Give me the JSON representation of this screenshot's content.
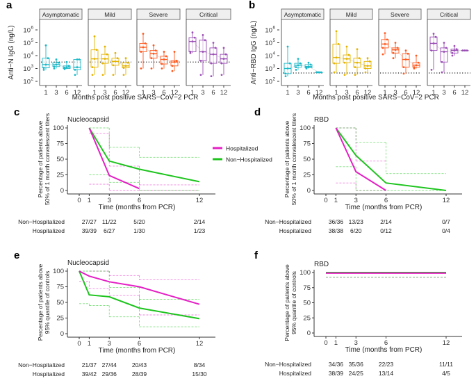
{
  "chart_data": [
    {
      "panel": "a",
      "type": "box",
      "ylabel": "Anti−N IgG (ng/L)",
      "xlabel": "Months post positive SARS−CoV−2 PCR",
      "y_scale": "log10",
      "ylim_log10": [
        2,
        6.5
      ],
      "yticks": [
        "10^2",
        "10^3",
        "10^4",
        "10^5",
        "10^6"
      ],
      "xticks": [
        "1",
        "3",
        "6",
        "12"
      ],
      "threshold_log10": 3.5,
      "facets": [
        {
          "name": "Asymptomatic",
          "color": "#1cb8c8",
          "boxes": [
            [
              2.9,
              3.05,
              3.3,
              3.8,
              4.8
            ],
            [
              3.0,
              3.15,
              3.3,
              3.45,
              3.7
            ],
            [
              2.95,
              3.0,
              3.1,
              3.2,
              3.5
            ],
            [
              2.5,
              2.9,
              3.1,
              3.7,
              3.7
            ]
          ]
        },
        {
          "name": "Mild",
          "color": "#e4b400",
          "boxes": [
            [
              2.5,
              3.1,
              3.75,
              4.45,
              5.5
            ],
            [
              2.5,
              3.4,
              3.75,
              4.1,
              4.7
            ],
            [
              2.5,
              3.25,
              3.55,
              3.8,
              4.2
            ],
            [
              2.5,
              3.05,
              3.2,
              3.45,
              3.8
            ]
          ]
        },
        {
          "name": "Severe",
          "color": "#ff5a1f",
          "boxes": [
            [
              3.0,
              4.3,
              4.65,
              4.95,
              5.7
            ],
            [
              3.0,
              3.8,
              4.15,
              4.4,
              4.8
            ],
            [
              3.0,
              3.35,
              3.7,
              3.95,
              4.3
            ],
            [
              2.8,
              3.2,
              3.5,
              3.6,
              4.3
            ]
          ]
        },
        {
          "name": "Critical",
          "color": "#9b4fb5",
          "boxes": [
            [
              4.2,
              4.3,
              5.1,
              5.4,
              5.8
            ],
            [
              2.5,
              3.6,
              4.3,
              5.2,
              5.6
            ],
            [
              2.4,
              3.4,
              4.1,
              4.6,
              5.0
            ],
            [
              2.5,
              3.4,
              3.75,
              4.1,
              4.6
            ]
          ]
        }
      ]
    },
    {
      "panel": "b",
      "type": "box",
      "ylabel": "Anti−RBD IgG (ng/L)",
      "xlabel": "Months post positive SARS−CoV−2 PCR",
      "y_scale": "log10",
      "ylim_log10": [
        2,
        6.5
      ],
      "yticks": [
        "10^2",
        "10^3",
        "10^4",
        "10^5",
        "10^6"
      ],
      "xticks": [
        "1",
        "3",
        "6",
        "12"
      ],
      "threshold_log10": 2.65,
      "facets": [
        {
          "name": "Asymptomatic",
          "color": "#1cb8c8",
          "boxes": [
            [
              2.4,
              2.6,
              3.0,
              3.4,
              4.7
            ],
            [
              2.9,
              3.1,
              3.25,
              3.4,
              3.75
            ],
            [
              3.0,
              3.05,
              3.15,
              3.3,
              3.45
            ],
            [
              2.7,
              2.7,
              2.7,
              2.7,
              2.7
            ]
          ]
        },
        {
          "name": "Mild",
          "color": "#e4b400",
          "boxes": [
            [
              2.7,
              3.4,
              3.85,
              4.9,
              5.9
            ],
            [
              2.5,
              3.45,
              3.75,
              4.05,
              4.7
            ],
            [
              2.5,
              3.1,
              3.45,
              3.8,
              4.5
            ],
            [
              2.7,
              3.0,
              3.2,
              3.55,
              3.8
            ]
          ]
        },
        {
          "name": "Severe",
          "color": "#ff5a1f",
          "boxes": [
            [
              4.1,
              4.6,
              4.9,
              5.25,
              5.75
            ],
            [
              3.8,
              4.2,
              4.45,
              4.6,
              5.0
            ],
            [
              2.6,
              3.1,
              3.7,
              4.15,
              4.4
            ],
            [
              3.0,
              3.1,
              3.25,
              3.45,
              4.0
            ]
          ]
        },
        {
          "name": "Critical",
          "color": "#9b4fb5",
          "boxes": [
            [
              2.9,
              4.4,
              4.95,
              5.45,
              5.7
            ],
            [
              2.7,
              3.5,
              4.3,
              4.6,
              5.0
            ],
            [
              4.0,
              4.2,
              4.4,
              4.5,
              4.75
            ],
            [
              4.4,
              4.4,
              4.4,
              4.4,
              4.4
            ]
          ]
        }
      ]
    },
    {
      "panel": "c",
      "type": "line",
      "title": "Nucleocapsid",
      "ylabel": "Percentage of patients above\n50% of 1 month convalescent titers",
      "xlabel": "Time (months from PCR)",
      "xticks": [
        0,
        1,
        3,
        6,
        12
      ],
      "yticks": [
        0,
        25,
        50,
        75,
        100
      ],
      "ylim": [
        0,
        100
      ],
      "xlim": [
        -1.3,
        13.5
      ],
      "series": [
        {
          "name": "Hospitalized",
          "x": [
            1,
            3,
            6
          ],
          "y": [
            100,
            24,
            3
          ],
          "ci_upper": [
            [
              1,
              3,
              91
            ],
            [
              3,
              6,
              39
            ],
            [
              6,
              12,
              9
            ]
          ],
          "ci_lower": [
            [
              1,
              3,
              10
            ],
            [
              3,
              12,
              0
            ]
          ]
        },
        {
          "name": "Non−Hospitalized",
          "x": [
            1,
            3,
            6,
            12
          ],
          "y": [
            100,
            47,
            34,
            14
          ],
          "ci_upper": [
            [
              1,
              3,
              100
            ],
            [
              3,
              6,
              69
            ],
            [
              6,
              12,
              53
            ]
          ],
          "ci_lower": [
            [
              1,
              3,
              25
            ],
            [
              3,
              6,
              13
            ],
            [
              6,
              12,
              0
            ]
          ]
        }
      ],
      "table": {
        "Non−Hospitalized": [
          "27/27",
          "11/22",
          "5/20",
          "2/14"
        ],
        "Hospitalized": [
          "39/39",
          "6/27",
          "1/30",
          "1/23"
        ],
        "x": [
          1,
          3,
          6,
          12
        ]
      }
    },
    {
      "panel": "d",
      "type": "line",
      "title": "RBD",
      "ylabel": "Percentage of patients above\n50% of 1 month convalescent titers",
      "xlabel": "Time (months from PCR)",
      "xticks": [
        0,
        1,
        3,
        6,
        12
      ],
      "yticks": [
        0,
        25,
        50,
        75,
        100
      ],
      "ylim": [
        0,
        100
      ],
      "xlim": [
        -1.3,
        13.5
      ],
      "series": [
        {
          "name": "Hospitalized",
          "x": [
            1,
            3,
            6
          ],
          "y": [
            100,
            30,
            0
          ],
          "ci_upper": [
            [
              1,
              3,
              100
            ],
            [
              3,
              6,
              47
            ]
          ],
          "ci_lower": [
            [
              1,
              3,
              12
            ],
            [
              3,
              6,
              0
            ]
          ]
        },
        {
          "name": "Non−Hospitalized",
          "x": [
            1,
            3,
            6,
            12
          ],
          "y": [
            100,
            56,
            12,
            0
          ],
          "ci_upper": [
            [
              1,
              3,
              100
            ],
            [
              3,
              6,
              77
            ],
            [
              6,
              12,
              27
            ]
          ],
          "ci_lower": [
            [
              1,
              3,
              38
            ],
            [
              3,
              12,
              0
            ]
          ]
        }
      ],
      "table": {
        "Non−Hospitalized": [
          "36/36",
          "13/23",
          "2/14",
          "0/7"
        ],
        "Hospitalized": [
          "38/38",
          "6/20",
          "0/12",
          "0/4"
        ],
        "x": [
          1,
          3,
          6,
          12
        ]
      }
    },
    {
      "panel": "e",
      "type": "line",
      "title": "Nucleocapsid",
      "ylabel": "Percentage of patients above\n95% quantile of controls",
      "xlabel": "Time (months from PCR)",
      "xticks": [
        0,
        1,
        3,
        6,
        12
      ],
      "yticks": [
        0,
        25,
        50,
        75,
        100
      ],
      "ylim": [
        0,
        100
      ],
      "xlim": [
        -1.3,
        13.5
      ],
      "series": [
        {
          "name": "Hospitalized",
          "x": [
            0,
            1,
            3,
            6,
            12
          ],
          "y": [
            100,
            92,
            83,
            75,
            47
          ],
          "ci_upper": [
            [
              1,
              3,
              100
            ],
            [
              3,
              6,
              93
            ],
            [
              6,
              12,
              86
            ]
          ],
          "ci_lower": [
            [
              0,
              1,
              84
            ],
            [
              1,
              3,
              72
            ],
            [
              3,
              6,
              61
            ],
            [
              6,
              12,
              30
            ]
          ]
        },
        {
          "name": "Non−Hospitalized",
          "x": [
            0,
            1,
            3,
            6,
            12
          ],
          "y": [
            100,
            62,
            59,
            41,
            24
          ],
          "ci_upper": [
            [
              0,
              3,
              100
            ],
            [
              3,
              6,
              74
            ],
            [
              6,
              12,
              55
            ]
          ],
          "ci_lower": [
            [
              0,
              1,
              48
            ],
            [
              1,
              3,
              45
            ],
            [
              3,
              6,
              27
            ],
            [
              6,
              12,
              11
            ]
          ]
        }
      ],
      "table": {
        "Non−Hospitalized": [
          "21/37",
          "27/44",
          "20/43",
          "8/34"
        ],
        "Hospitalized": [
          "39/42",
          "29/36",
          "28/39",
          "15/30"
        ],
        "x": [
          1,
          3,
          6,
          12
        ]
      }
    },
    {
      "panel": "f",
      "type": "line",
      "title": "RBD",
      "ylabel": "Percentage of patients above\n95% quantile of controls",
      "xlabel": "Time (months from PCR)",
      "xticks": [
        0,
        1,
        3,
        6,
        12
      ],
      "yticks": [
        0,
        25,
        50,
        75,
        100
      ],
      "ylim": [
        0,
        100
      ],
      "xlim": [
        -1.3,
        13.5
      ],
      "series": [
        {
          "name": "Hospitalized",
          "x": [
            0,
            12
          ],
          "y": [
            99,
            99
          ],
          "ci_upper": [],
          "ci_lower": [
            [
              0,
              12,
              92
            ]
          ]
        },
        {
          "name": "Non−Hospitalized",
          "x": [
            0,
            12
          ],
          "y": [
            100,
            100
          ],
          "ci_upper": [],
          "ci_lower": [
            [
              0,
              12,
              92
            ]
          ]
        }
      ],
      "table": {
        "Non−Hospitalized": [
          "34/36",
          "35/36",
          "22/23",
          "11/11"
        ],
        "Hospitalized": [
          "38/39",
          "24/25",
          "13/14",
          "4/5"
        ],
        "x": [
          1,
          3,
          6,
          12
        ]
      }
    }
  ],
  "legend": {
    "position": "between panels c and d",
    "items": [
      {
        "name": "Hospitalized",
        "color": "#e41fc4"
      },
      {
        "name": "Non−Hospitalized",
        "color": "#1ec41e"
      }
    ]
  }
}
